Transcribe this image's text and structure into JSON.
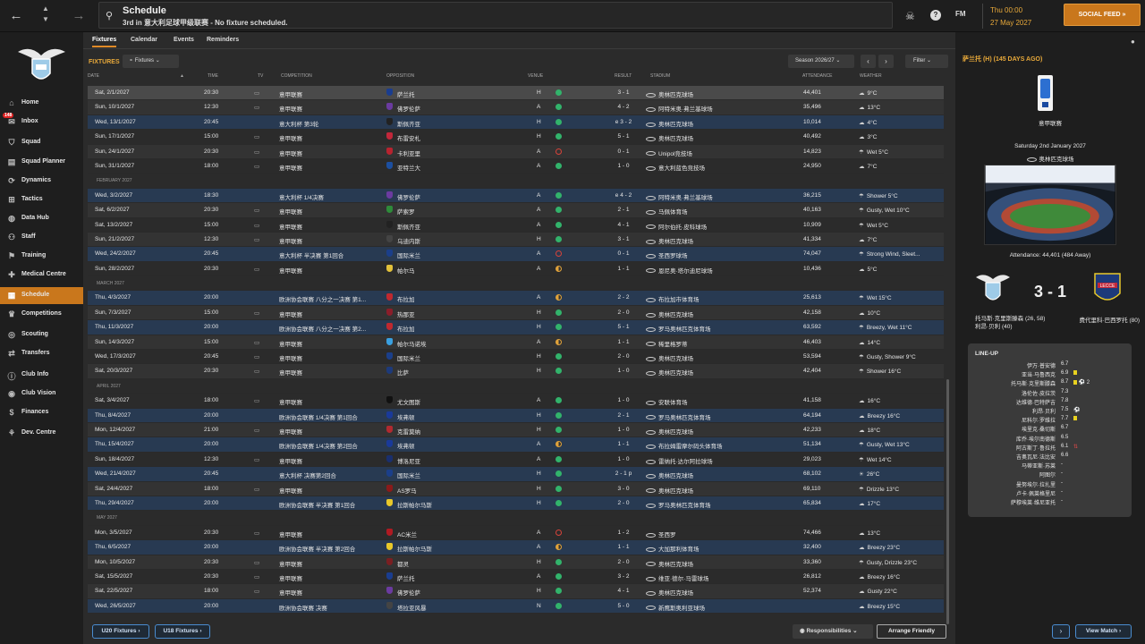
{
  "topbar": {
    "title": "Schedule",
    "subtitle": "3rd in 意大利足球甲级联赛 - No fixture scheduled.",
    "date_line1": "Thu 00:00",
    "date_line2": "27 May 2027",
    "fm_label": "FM",
    "social_feed": "SOCIAL FEED"
  },
  "sidebar": {
    "inbox_badge": "148",
    "items": [
      {
        "label": "Home",
        "icon": "home-icon"
      },
      {
        "label": "Inbox",
        "icon": "inbox-icon"
      },
      {
        "label": "Squad",
        "icon": "shirt-icon"
      },
      {
        "label": "Squad Planner",
        "icon": "planner-icon"
      },
      {
        "label": "Dynamics",
        "icon": "dynamics-icon"
      },
      {
        "label": "Tactics",
        "icon": "tactics-icon"
      },
      {
        "label": "Data Hub",
        "icon": "data-icon"
      },
      {
        "label": "Staff",
        "icon": "staff-icon"
      },
      {
        "label": "Training",
        "icon": "training-icon"
      },
      {
        "label": "Medical Centre",
        "icon": "medical-icon"
      },
      {
        "label": "Schedule",
        "icon": "calendar-icon"
      },
      {
        "label": "Competitions",
        "icon": "trophy-icon"
      },
      {
        "label": "Scouting",
        "icon": "scouting-icon"
      },
      {
        "label": "Transfers",
        "icon": "transfers-icon"
      },
      {
        "label": "Club Info",
        "icon": "info-icon"
      },
      {
        "label": "Club Vision",
        "icon": "vision-icon"
      },
      {
        "label": "Finances",
        "icon": "finances-icon"
      },
      {
        "label": "Dev. Centre",
        "icon": "dev-icon"
      }
    ]
  },
  "tabs": [
    "Fixtures",
    "Calendar",
    "Events",
    "Reminders"
  ],
  "toolbar": {
    "section_label": "FIXTURES",
    "fixtures_select": "Fixtures",
    "season_select": "Season 2026/27",
    "filter": "Filter"
  },
  "columns": [
    "DATE",
    "TIME",
    "TV",
    "COMPETITION",
    "OPPOSITION",
    "VENUE",
    "RESULT",
    "STADIUM",
    "ATTENDANCE",
    "WEATHER"
  ],
  "rows": [
    {
      "date": "Sat, 2/1/2027",
      "time": "20:30",
      "tv": true,
      "comp": "意甲联赛",
      "opp": "萨兰托",
      "venue": "H",
      "res": "w",
      "score": "3 - 1",
      "stadium": "奥林匹克球场",
      "att": "44,401",
      "weather": "9°C",
      "style": "first",
      "badge": "#1a3d8f"
    },
    {
      "date": "Sun, 10/1/2027",
      "time": "12:30",
      "tv": true,
      "comp": "意甲联赛",
      "opp": "佛罗伦萨",
      "venue": "A",
      "res": "w",
      "score": "4 - 2",
      "stadium": "阿特米奥·弗兰基球场",
      "att": "35,496",
      "weather": "13°C",
      "style": "alt",
      "badge": "#6b3ba0"
    },
    {
      "date": "Wed, 13/1/2027",
      "time": "20:45",
      "tv": false,
      "comp": "意大利杯 第3轮",
      "opp": "斯佩齐亚",
      "venue": "H",
      "res": "w",
      "score": "e 3 - 2",
      "stadium": "奥林匹克球场",
      "att": "10,014",
      "weather": "4°C",
      "style": "hl",
      "badge": "#222222"
    },
    {
      "date": "Sun, 17/1/2027",
      "time": "15:00",
      "tv": true,
      "comp": "意甲联赛",
      "opp": "布雷安札",
      "venue": "H",
      "res": "w",
      "score": "5 - 1",
      "stadium": "奥林匹克球场",
      "att": "40,492",
      "weather": "3°C",
      "style": "",
      "badge": "#c2273a"
    },
    {
      "date": "Sun, 24/1/2027",
      "time": "20:30",
      "tv": true,
      "comp": "意甲联赛",
      "opp": "卡利亚里",
      "venue": "A",
      "res": "l",
      "score": "0 - 1",
      "stadium": "Unipol竞技场",
      "att": "14,823",
      "weather": "Wet 5°C",
      "style": "alt",
      "badge": "#b8232f"
    },
    {
      "date": "Sun, 31/1/2027",
      "time": "18:00",
      "tv": true,
      "comp": "意甲联赛",
      "opp": "亚特兰大",
      "venue": "A",
      "res": "w",
      "score": "1 - 0",
      "stadium": "意大利蓝色竞技场",
      "att": "24,950",
      "weather": "7°C",
      "style": "",
      "badge": "#1c4fa0"
    },
    {
      "month": "FEBRUARY 2027"
    },
    {
      "date": "Wed, 3/2/2027",
      "time": "18:30",
      "tv": false,
      "comp": "意大利杯 1/4决赛",
      "opp": "佛罗伦萨",
      "venue": "A",
      "res": "w",
      "score": "e 4 - 2",
      "stadium": "阿特米奥·弗兰基球场",
      "att": "36,215",
      "weather": "Shower 5°C",
      "style": "hl",
      "badge": "#6b3ba0"
    },
    {
      "date": "Sat, 6/2/2027",
      "time": "20:30",
      "tv": true,
      "comp": "意甲联赛",
      "opp": "萨索罗",
      "venue": "A",
      "res": "w",
      "score": "2 - 1",
      "stadium": "马佩体育场",
      "att": "40,163",
      "weather": "Gusty, Wet 10°C",
      "style": "alt",
      "badge": "#2e8b3a"
    },
    {
      "date": "Sat, 13/2/2027",
      "time": "15:00",
      "tv": true,
      "comp": "意甲联赛",
      "opp": "斯佩齐亚",
      "venue": "A",
      "res": "w",
      "score": "4 - 1",
      "stadium": "阿尔伯托·皮科球场",
      "att": "10,909",
      "weather": "Wet 5°C",
      "style": "",
      "badge": "#222222"
    },
    {
      "date": "Sun, 21/2/2027",
      "time": "12:30",
      "tv": true,
      "comp": "意甲联赛",
      "opp": "乌迪内斯",
      "venue": "H",
      "res": "w",
      "score": "3 - 1",
      "stadium": "奥林匹克球场",
      "att": "41,334",
      "weather": "7°C",
      "style": "alt",
      "badge": "#444444"
    },
    {
      "date": "Wed, 24/2/2027",
      "time": "20:45",
      "tv": false,
      "comp": "意大利杯 半决赛 第1回合",
      "opp": "国际米兰",
      "venue": "A",
      "res": "l",
      "score": "0 - 1",
      "stadium": "圣西罗球场",
      "att": "74,047",
      "weather": "Strong Wind, Sleet...",
      "style": "hl",
      "badge": "#1b3f8a"
    },
    {
      "date": "Sun, 28/2/2027",
      "time": "20:30",
      "tv": true,
      "comp": "意甲联赛",
      "opp": "帕尔马",
      "venue": "A",
      "res": "d",
      "score": "1 - 1",
      "stadium": "恩尼奥·塔尔迪尼球场",
      "att": "10,436",
      "weather": "5°C",
      "style": "",
      "badge": "#e2c13a"
    },
    {
      "month": "MARCH 2027"
    },
    {
      "date": "Thu, 4/3/2027",
      "time": "20:00",
      "tv": false,
      "comp": "欧洲协会联赛 八分之一决赛 第1...",
      "opp": "布拉加",
      "venue": "A",
      "res": "d",
      "score": "2 - 2",
      "stadium": "布拉加市体育场",
      "att": "25,613",
      "weather": "Wet 15°C",
      "style": "hl",
      "badge": "#c0292f"
    },
    {
      "date": "Sun, 7/3/2027",
      "time": "15:00",
      "tv": true,
      "comp": "意甲联赛",
      "opp": "热那亚",
      "venue": "H",
      "res": "w",
      "score": "2 - 0",
      "stadium": "奥林匹克球场",
      "att": "42,158",
      "weather": "10°C",
      "style": "alt",
      "badge": "#8b1e2a"
    },
    {
      "date": "Thu, 11/3/2027",
      "time": "20:00",
      "tv": false,
      "comp": "欧洲协会联赛 八分之一决赛 第2...",
      "opp": "布拉加",
      "venue": "H",
      "res": "w",
      "score": "5 - 1",
      "stadium": "罗马奥林匹克体育场",
      "att": "63,592",
      "weather": "Breezy, Wet 11°C",
      "style": "hl",
      "badge": "#c0292f"
    },
    {
      "date": "Sun, 14/3/2027",
      "time": "15:00",
      "tv": true,
      "comp": "意甲联赛",
      "opp": "帕尔马诺埃",
      "venue": "A",
      "res": "d",
      "score": "1 - 1",
      "stadium": "稀里格罗蒂",
      "att": "46,403",
      "weather": "14°C",
      "style": "alt",
      "badge": "#3aa0e0"
    },
    {
      "date": "Wed, 17/3/2027",
      "time": "20:45",
      "tv": true,
      "comp": "意甲联赛",
      "opp": "国际米兰",
      "venue": "H",
      "res": "w",
      "score": "2 - 0",
      "stadium": "奥林匹克球场",
      "att": "53,594",
      "weather": "Gusty, Shower 9°C",
      "style": "",
      "badge": "#1b3f8a"
    },
    {
      "date": "Sat, 20/3/2027",
      "time": "20:30",
      "tv": true,
      "comp": "意甲联赛",
      "opp": "比萨",
      "venue": "H",
      "res": "w",
      "score": "1 - 0",
      "stadium": "奥林匹克球场",
      "att": "42,404",
      "weather": "Shower 16°C",
      "style": "alt",
      "badge": "#1d3a7a"
    },
    {
      "month": "APRIL 2027"
    },
    {
      "date": "Sat, 3/4/2027",
      "time": "18:00",
      "tv": true,
      "comp": "意甲联赛",
      "opp": "尤文图斯",
      "venue": "A",
      "res": "w",
      "score": "1 - 0",
      "stadium": "安联体育场",
      "att": "41,158",
      "weather": "16°C",
      "style": "",
      "badge": "#111111"
    },
    {
      "date": "Thu, 8/4/2027",
      "time": "20:00",
      "tv": false,
      "comp": "欧洲协会联赛 1/4决赛 第1回合",
      "opp": "埃弗顿",
      "venue": "H",
      "res": "w",
      "score": "2 - 1",
      "stadium": "罗马奥林匹克体育场",
      "att": "64,194",
      "weather": "Breezy 16°C",
      "style": "hl",
      "badge": "#1a3a9a"
    },
    {
      "date": "Mon, 12/4/2027",
      "time": "21:00",
      "tv": true,
      "comp": "意甲联赛",
      "opp": "克雷莫纳",
      "venue": "H",
      "res": "w",
      "score": "1 - 0",
      "stadium": "奥林匹克球场",
      "att": "42,233",
      "weather": "18°C",
      "style": "alt",
      "badge": "#b02a30"
    },
    {
      "date": "Thu, 15/4/2027",
      "time": "20:00",
      "tv": false,
      "comp": "欧洲协会联赛 1/4决赛 第2回合",
      "opp": "埃弗顿",
      "venue": "A",
      "res": "d",
      "score": "1 - 1",
      "stadium": "布拉姆雷摩尔码头体育场",
      "att": "51,134",
      "weather": "Gusty, Wet 13°C",
      "style": "hl",
      "badge": "#1a3a9a"
    },
    {
      "date": "Sun, 18/4/2027",
      "time": "12:30",
      "tv": true,
      "comp": "意甲联赛",
      "opp": "博洛尼亚",
      "venue": "A",
      "res": "w",
      "score": "1 - 0",
      "stadium": "雷纳托·达尔阿拉球场",
      "att": "29,023",
      "weather": "Wet 14°C",
      "style": "",
      "badge": "#1a2f6e"
    },
    {
      "date": "Wed, 21/4/2027",
      "time": "20:45",
      "tv": false,
      "comp": "意大利杯 决赛第2回合",
      "opp": "国际米兰",
      "venue": "H",
      "res": "w",
      "score": "2 - 1 p",
      "stadium": "奥林匹克球场",
      "att": "68,102",
      "weather": "26°C",
      "style": "hl",
      "badge": "#1b3f8a"
    },
    {
      "date": "Sat, 24/4/2027",
      "time": "18:00",
      "tv": true,
      "comp": "意甲联赛",
      "opp": "AS罗马",
      "venue": "H",
      "res": "w",
      "score": "3 - 0",
      "stadium": "奥林匹克球场",
      "att": "69,110",
      "weather": "Drizzle 13°C",
      "style": "alt",
      "badge": "#8b1a1a"
    },
    {
      "date": "Thu, 29/4/2027",
      "time": "20:00",
      "tv": false,
      "comp": "欧洲协会联赛 半决赛 第1回合",
      "opp": "拉斯帕尔马斯",
      "venue": "H",
      "res": "w",
      "score": "2 - 0",
      "stadium": "罗马奥林匹克体育场",
      "att": "65,834",
      "weather": "17°C",
      "style": "hl",
      "badge": "#e8c82a"
    },
    {
      "month": "MAY 2027"
    },
    {
      "date": "Mon, 3/5/2027",
      "time": "20:30",
      "tv": true,
      "comp": "意甲联赛",
      "opp": "AC米兰",
      "venue": "A",
      "res": "l",
      "score": "1 - 2",
      "stadium": "圣西罗",
      "att": "74,466",
      "weather": "13°C",
      "style": "",
      "badge": "#b01a22"
    },
    {
      "date": "Thu, 6/5/2027",
      "time": "20:00",
      "tv": false,
      "comp": "欧洲协会联赛 半决赛 第2回合",
      "opp": "拉斯帕尔马斯",
      "venue": "A",
      "res": "d",
      "score": "1 - 1",
      "stadium": "大加那利体育场",
      "att": "32,400",
      "weather": "Breezy 23°C",
      "style": "hl",
      "badge": "#e8c82a"
    },
    {
      "date": "Mon, 10/5/2027",
      "time": "20:30",
      "tv": true,
      "comp": "意甲联赛",
      "opp": "都灵",
      "venue": "H",
      "res": "w",
      "score": "2 - 0",
      "stadium": "奥林匹克球场",
      "att": "33,360",
      "weather": "Gusty, Drizzle 23°C",
      "style": "alt",
      "badge": "#7a1f22"
    },
    {
      "date": "Sat, 15/5/2027",
      "time": "20:30",
      "tv": true,
      "comp": "意甲联赛",
      "opp": "萨兰托",
      "venue": "A",
      "res": "w",
      "score": "3 - 2",
      "stadium": "维亚·德尔·马雷球场",
      "att": "26,812",
      "weather": "Breezy 16°C",
      "style": "",
      "badge": "#1a3d8f"
    },
    {
      "date": "Sat, 22/5/2027",
      "time": "18:00",
      "tv": true,
      "comp": "意甲联赛",
      "opp": "佛罗伦萨",
      "venue": "H",
      "res": "w",
      "score": "4 - 1",
      "stadium": "奥林匹克球场",
      "att": "52,374",
      "weather": "Gusty 22°C",
      "style": "alt",
      "badge": "#6b3ba0"
    },
    {
      "date": "Wed, 26/5/2027",
      "time": "20:00",
      "tv": false,
      "comp": "欧洲协会联赛 决赛",
      "opp": "塔拉亚风暴",
      "venue": "N",
      "res": "w",
      "score": "5 - 0",
      "stadium": "新鹰斯奥利亚球场",
      "att": "",
      "weather": "Breezy 15°C",
      "style": "hl",
      "badge": "#444444"
    }
  ],
  "bottom": {
    "u20": "U20 Fixtures",
    "u18": "U18 Fixtures",
    "responsibilities": "Responsibilities",
    "arrange_friendly": "Arrange Friendly",
    "view_match": "View Match"
  },
  "match": {
    "title": "萨兰托 (H) (145 DAYS AGO)",
    "competition": "意甲联赛",
    "date": "Saturday 2nd January 2027",
    "venue": "奥林匹克球场",
    "attendance": "Attendance: 44,401 (484 Away)",
    "score": "3 - 1",
    "home_scorers": "托马斯·克里斯滕森 (26, 58)",
    "home_scorers2": "利昂·贝利 (40)",
    "away_scorers": "费代里科·巴西罗托 (80)",
    "lineup_title": "LINE-UP",
    "lineup": [
      {
        "name": "伊万·普安德",
        "rating": "6.7",
        "ev": ""
      },
      {
        "name": "亚当·马鲁西克",
        "rating": "6.9",
        "ev": "yc"
      },
      {
        "name": "托马斯·克里斯滕森",
        "rating": "8.7",
        "ev": "yc goal 2"
      },
      {
        "name": "洛伦佐·皮拉茨",
        "rating": "7.3",
        "ev": ""
      },
      {
        "name": "达维德·巴特萨吉",
        "rating": "7.8",
        "ev": ""
      },
      {
        "name": "利昂·贝利",
        "rating": "7.5",
        "ev": "goal"
      },
      {
        "name": "尼科尔·罗维拉",
        "rating": "7.7",
        "ev": "yc"
      },
      {
        "name": "埃里克·桑切斯",
        "rating": "6.7",
        "ev": ""
      },
      {
        "name": "库乔·埃尔南德斯",
        "rating": "6.5",
        "ev": ""
      },
      {
        "name": "阿古斯丁·鲁拉托",
        "rating": "6.1",
        "ev": "sub"
      },
      {
        "name": "吉奥瓦尼·法比安",
        "rating": "6.6",
        "ev": ""
      },
      {
        "name": "马蒂亚斯·苏莱",
        "rating": "-",
        "ev": ""
      },
      {
        "name": "阿图尔",
        "rating": "-",
        "ev": ""
      },
      {
        "name": "曼努埃尔·拉扎里",
        "rating": "-",
        "ev": ""
      },
      {
        "name": "卢卡·佩莱格里尼",
        "rating": "-",
        "ev": ""
      },
      {
        "name": "萨穆埃莱·维尼亚托",
        "rating": "-",
        "ev": ""
      }
    ]
  }
}
